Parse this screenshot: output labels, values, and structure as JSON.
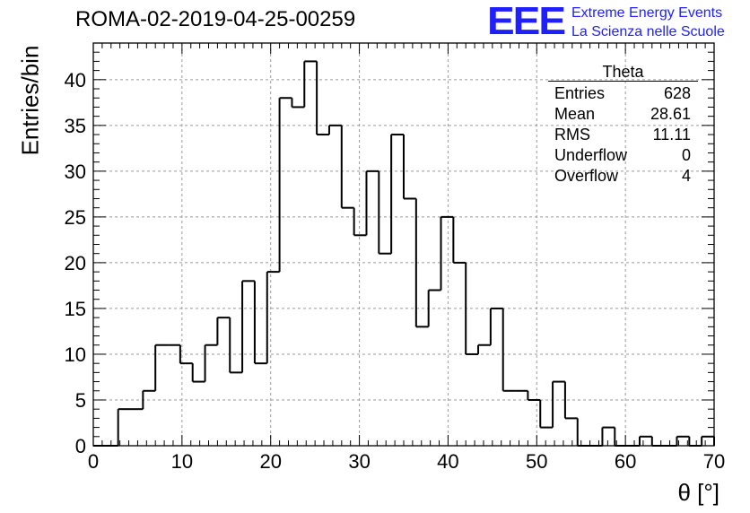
{
  "title": "ROMA-02-2019-04-25-00259",
  "logo": {
    "mark": "EEE",
    "line1": "Extreme Energy Events",
    "line2": "La Scienza nelle Scuole",
    "color": "#1f1fff"
  },
  "stats": {
    "title": "Theta",
    "rows": [
      {
        "label": "Entries",
        "value": "628"
      },
      {
        "label": "Mean",
        "value": "28.61"
      },
      {
        "label": "RMS",
        "value": "11.11"
      },
      {
        "label": "Underflow",
        "value": "0"
      },
      {
        "label": "Overflow",
        "value": "4"
      }
    ]
  },
  "chart_data": {
    "type": "bar",
    "histogram": true,
    "title": "ROMA-02-2019-04-25-00259",
    "xlabel": "θ [°]",
    "ylabel": "Entries/bin",
    "xlim": [
      0,
      70
    ],
    "ylim": [
      0,
      44
    ],
    "grid": true,
    "bin_width": 1.4,
    "bin_edges_start": 0,
    "x_ticks": [
      0,
      10,
      20,
      30,
      40,
      50,
      60,
      70
    ],
    "y_ticks": [
      0,
      5,
      10,
      15,
      20,
      25,
      30,
      35,
      40
    ],
    "values": [
      0,
      0,
      4,
      4,
      6,
      11,
      11,
      9,
      7,
      11,
      14,
      8,
      18,
      9,
      19,
      38,
      37,
      42,
      34,
      35,
      26,
      23,
      30,
      21,
      34,
      27,
      13,
      17,
      25,
      20,
      10,
      11,
      15,
      6,
      6,
      5,
      2,
      7,
      3,
      0,
      0,
      2,
      0,
      0,
      1,
      0,
      0,
      1,
      0,
      1
    ],
    "line_color": "#000000"
  }
}
